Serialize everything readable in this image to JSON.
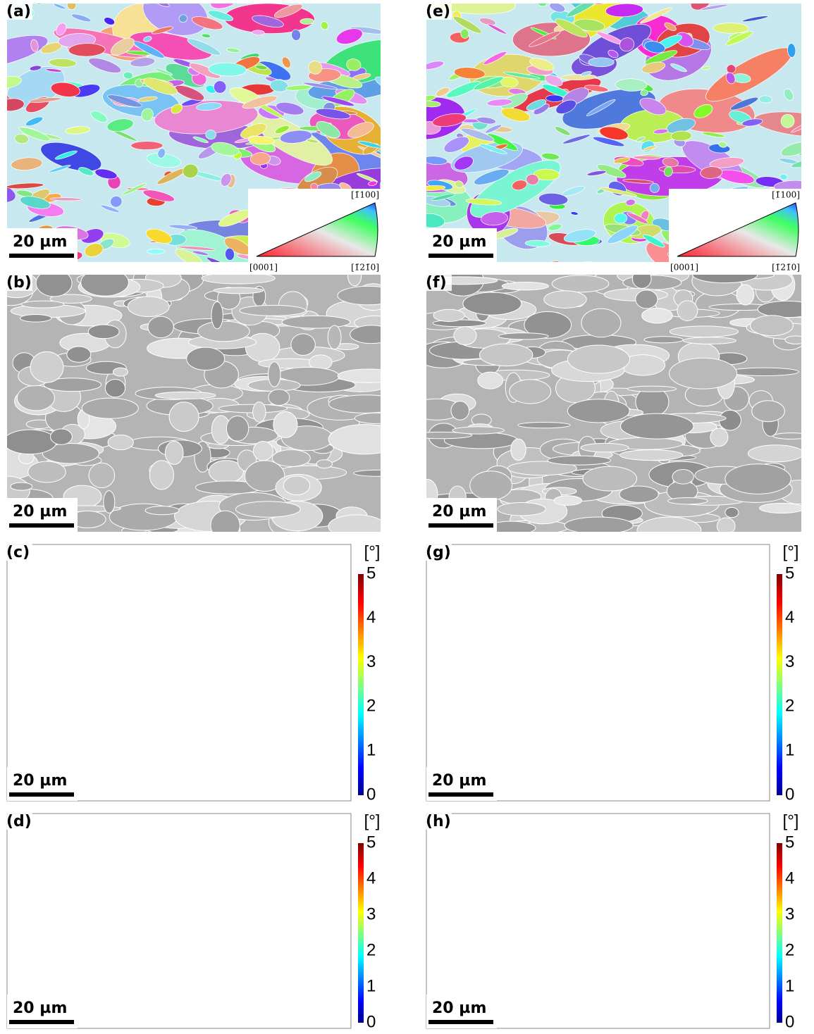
{
  "panels": [
    {
      "label": "(a)",
      "scale_bar": "20 µm",
      "kind": "ipf"
    },
    {
      "label": "(b)",
      "scale_bar": "20 µm",
      "kind": "quality"
    },
    {
      "label": "(c)",
      "scale_bar": "20 µm",
      "kind": "misorientation"
    },
    {
      "label": "(d)",
      "scale_bar": "20 µm",
      "kind": "misorientation"
    },
    {
      "label": "(e)",
      "scale_bar": "20 µm",
      "kind": "ipf"
    },
    {
      "label": "(f)",
      "scale_bar": "20 µm",
      "kind": "quality"
    },
    {
      "label": "(g)",
      "scale_bar": "20 µm",
      "kind": "misorientation"
    },
    {
      "label": "(h)",
      "scale_bar": "20 µm",
      "kind": "misorientation"
    }
  ],
  "ipf_legend": {
    "top": "[1̄100]",
    "left": "[0001]",
    "right": "[1̄21̄0]"
  },
  "colorbar": {
    "unit": "[°]",
    "ticks": [
      0,
      1,
      2,
      3,
      4,
      5
    ]
  }
}
